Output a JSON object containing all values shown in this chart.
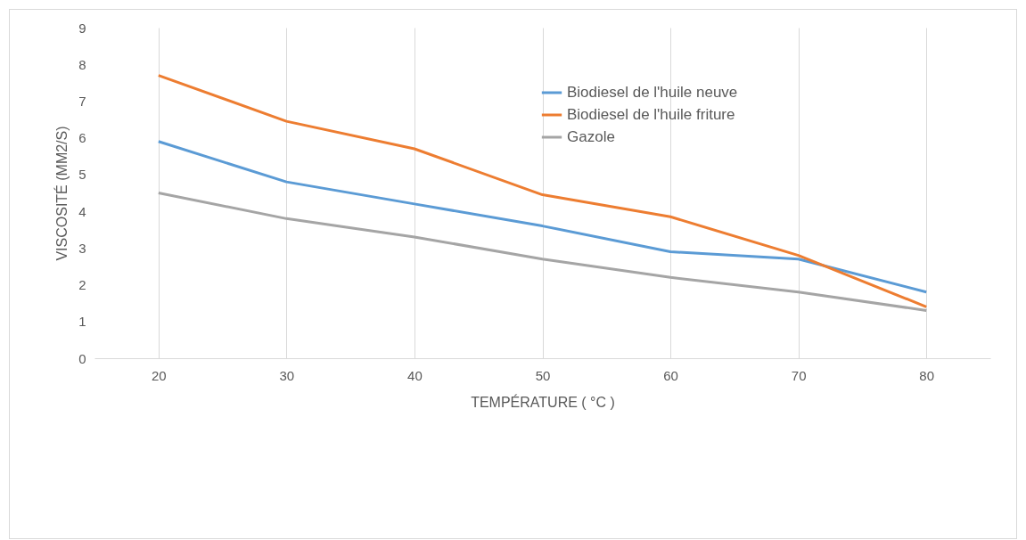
{
  "chart_data": {
    "type": "line",
    "xlabel": "TEMPÉRATURE ( °C )",
    "ylabel": "VISCOSITÉ (MM2/S)",
    "categories": [
      "20",
      "30",
      "40",
      "50",
      "60",
      "70",
      "80"
    ],
    "series": [
      {
        "name": "Biodiesel de l'huile neuve",
        "color": "#5b9bd5",
        "values": [
          5.9,
          4.8,
          4.2,
          3.6,
          2.9,
          2.7,
          1.8
        ]
      },
      {
        "name": "Biodiesel de l'huile friture",
        "color": "#ed7d31",
        "values": [
          7.7,
          6.45,
          5.7,
          4.45,
          3.85,
          2.8,
          1.4
        ]
      },
      {
        "name": "Gazole",
        "color": "#a5a5a5",
        "values": [
          4.5,
          3.8,
          3.3,
          2.7,
          2.2,
          1.8,
          1.3
        ]
      }
    ],
    "ylim": [
      0,
      9
    ],
    "yticks": [
      0,
      1,
      2,
      3,
      4,
      5,
      6,
      7,
      8,
      9
    ],
    "grid": "x",
    "legend": "top right",
    "marker": "none",
    "line_style": "solid"
  }
}
